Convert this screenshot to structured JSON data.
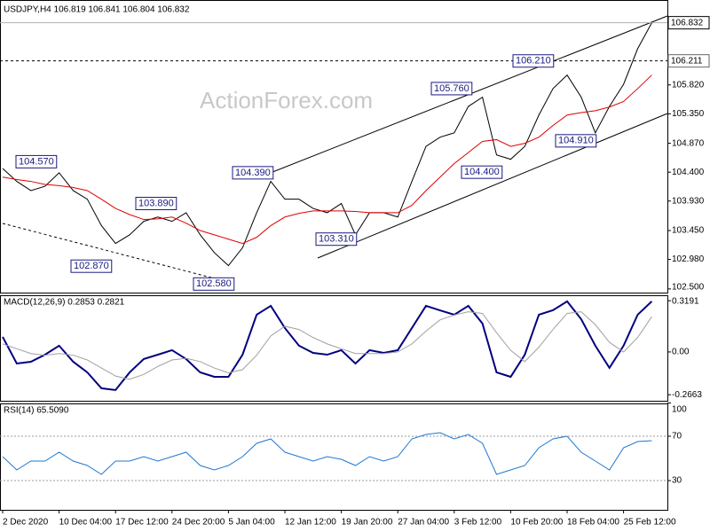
{
  "watermark": "ActionForex.com",
  "chart_data": [
    {
      "type": "line",
      "title": "USDJPY,H4  106.819 106.841 106.804 106.832",
      "ylim": [
        102.44,
        107.13
      ],
      "yticks": [
        {
          "value": 102.5,
          "label": "102.500"
        },
        {
          "value": 102.98,
          "label": "102.980"
        },
        {
          "value": 103.45,
          "label": "103.450"
        },
        {
          "value": 103.93,
          "label": "103.930"
        },
        {
          "value": 104.4,
          "label": "104.400"
        },
        {
          "value": 104.87,
          "label": "104.870"
        },
        {
          "value": 105.35,
          "label": "105.350"
        },
        {
          "value": 105.82,
          "label": "105.820"
        }
      ],
      "last_price": 106.832,
      "level": 106.211,
      "series": [
        {
          "color": "#000000",
          "values": [
            104.46,
            104.25,
            104.1,
            104.17,
            104.39,
            104.1,
            103.96,
            103.53,
            103.24,
            103.38,
            103.6,
            103.67,
            103.6,
            103.74,
            103.38,
            103.09,
            102.88,
            103.17,
            103.74,
            104.25,
            103.96,
            103.96,
            103.81,
            103.74,
            103.89,
            103.38,
            103.74,
            103.74,
            103.67,
            104.25,
            104.82,
            104.97,
            105.04,
            105.47,
            105.62,
            104.68,
            104.61,
            104.82,
            105.33,
            105.76,
            105.98,
            105.62,
            105.04,
            105.47,
            105.83,
            106.41,
            106.83
          ]
        },
        {
          "color": "#e00000",
          "values": [
            104.32,
            104.28,
            104.25,
            104.2,
            104.18,
            104.15,
            104.1,
            103.96,
            103.81,
            103.71,
            103.63,
            103.64,
            103.67,
            103.57,
            103.45,
            103.38,
            103.31,
            103.24,
            103.34,
            103.53,
            103.67,
            103.73,
            103.77,
            103.77,
            103.77,
            103.76,
            103.74,
            103.74,
            103.74,
            103.86,
            104.1,
            104.32,
            104.54,
            104.72,
            104.9,
            104.93,
            104.82,
            104.87,
            104.97,
            105.16,
            105.33,
            105.37,
            105.4,
            105.46,
            105.55,
            105.76,
            105.98
          ]
        }
      ],
      "annotations": [
        {
          "value": 104.57,
          "label": "104.570"
        },
        {
          "value": 104.39,
          "label": "104.390"
        },
        {
          "value": 103.89,
          "label": "103.890"
        },
        {
          "value": 102.87,
          "label": "102.870"
        },
        {
          "value": 102.58,
          "label": "102.580"
        },
        {
          "value": 103.31,
          "label": "103.310"
        },
        {
          "value": 104.4,
          "label": "104.400"
        },
        {
          "value": 105.76,
          "label": "105.760"
        },
        {
          "value": 106.21,
          "label": "106.210"
        },
        {
          "value": 104.91,
          "label": "104.910"
        }
      ]
    },
    {
      "type": "line",
      "title": "MACD(12,26,9) 0.2853 0.2821",
      "ylim": [
        -0.304,
        0.353
      ],
      "yticks": [
        0.3191,
        {
          "value": 0,
          "label": "0.00"
        },
        -0.2663
      ],
      "series": [
        {
          "color": "#000080",
          "values": [
            0.094,
            -0.072,
            -0.061,
            -0.017,
            0.039,
            -0.061,
            -0.127,
            -0.226,
            -0.237,
            -0.127,
            -0.044,
            -0.017,
            0.011,
            -0.044,
            -0.127,
            -0.155,
            -0.155,
            -0.017,
            0.232,
            0.287,
            0.149,
            0.039,
            -0.006,
            -0.017,
            0.011,
            -0.072,
            0.011,
            -0.006,
            0.011,
            0.149,
            0.287,
            0.259,
            0.232,
            0.287,
            0.177,
            -0.127,
            -0.155,
            -0.017,
            0.232,
            0.26,
            0.315,
            0.204,
            0.039,
            -0.099,
            0.039,
            0.232,
            0.315
          ]
        },
        {
          "color": "#a0a0a0",
          "values": [
            0.05,
            0.02,
            -0.01,
            -0.02,
            -0.01,
            -0.02,
            -0.05,
            -0.1,
            -0.15,
            -0.17,
            -0.14,
            -0.09,
            -0.05,
            -0.04,
            -0.06,
            -0.1,
            -0.13,
            -0.11,
            -0.02,
            0.1,
            0.16,
            0.14,
            0.09,
            0.05,
            0.02,
            -0.01,
            -0.01,
            -0.01,
            0,
            0.05,
            0.13,
            0.2,
            0.23,
            0.25,
            0.24,
            0.12,
            0.01,
            -0.06,
            0.03,
            0.14,
            0.24,
            0.25,
            0.17,
            0.06,
            0,
            0.09,
            0.22
          ]
        }
      ]
    },
    {
      "type": "line",
      "title": "RSI(14) 65.5090",
      "ylim": [
        3.6,
        99.6
      ],
      "yticks": [
        100,
        70,
        30
      ],
      "levels": [
        70,
        30
      ],
      "categories": [
        "2 Dec 2020",
        null,
        null,
        null,
        "10 Dec 04:00",
        null,
        null,
        null,
        "17 Dec 12:00",
        null,
        null,
        null,
        "24 Dec 20:00",
        null,
        null,
        null,
        "5 Jan 04:00",
        null,
        null,
        null,
        "12 Jan 12:00",
        null,
        null,
        null,
        "19 Jan 20:00",
        null,
        null,
        null,
        "27 Jan 04:00",
        null,
        null,
        null,
        "3 Feb 12:00",
        null,
        null,
        null,
        "10 Feb 20:00",
        null,
        null,
        null,
        "18 Feb 04:00",
        null,
        null,
        null,
        "25 Feb 12:00",
        null,
        null
      ],
      "series": [
        {
          "color": "#1e78d2",
          "values": [
            51.6,
            39.6,
            47.6,
            47.6,
            55.6,
            47.6,
            43.6,
            35.6,
            47.6,
            47.6,
            51.6,
            47.6,
            51.6,
            55.6,
            43.6,
            39.6,
            43.6,
            51.6,
            63.6,
            67.6,
            55.6,
            51.6,
            47.6,
            51.6,
            49.2,
            43.6,
            51.6,
            47.6,
            51.6,
            67.6,
            71.6,
            73.2,
            67.6,
            71.6,
            63.6,
            35.6,
            39.6,
            43.6,
            59.6,
            67.6,
            70,
            55.6,
            47.6,
            39.6,
            59.6,
            65.2,
            66
          ]
        }
      ]
    }
  ]
}
